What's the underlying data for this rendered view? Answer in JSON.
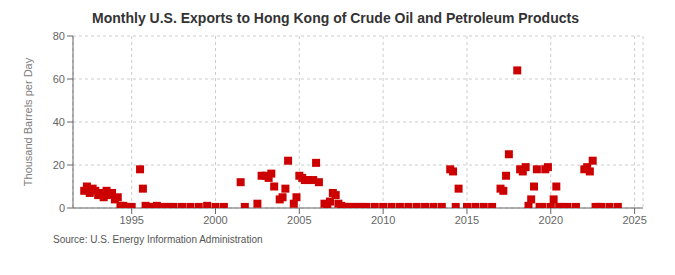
{
  "chart_data": {
    "type": "scatter",
    "title": "Monthly U.S. Exports to Hong Kong of Crude Oil and Petroleum Products",
    "y_label": "Thousand Barrels per Day",
    "annotations": [
      "Source: U.S. Energy Information Administration"
    ],
    "color": "#cc0000",
    "marker": "square",
    "grid": true,
    "xlim": [
      1991.5,
      2025.5
    ],
    "ylim": [
      0,
      80
    ],
    "xticks": [
      1995,
      2000,
      2005,
      2010,
      2015,
      2020,
      2025
    ],
    "yticks": [
      0,
      20,
      40,
      60,
      80
    ],
    "x": [
      1992.17,
      1992.33,
      1992.5,
      1992.67,
      1992.83,
      1993.0,
      1993.17,
      1993.33,
      1993.5,
      1993.67,
      1993.83,
      1994.0,
      1994.17,
      1994.33,
      1994.5,
      1994.67,
      1994.83,
      1995.0,
      1995.5,
      1995.67,
      1995.83,
      1996.0,
      1996.17,
      1996.5,
      1996.75,
      1997.0,
      1997.25,
      1997.5,
      1998.0,
      1998.5,
      1999.0,
      1999.5,
      2000.0,
      2000.5,
      2001.5,
      2001.75,
      2002.5,
      2002.75,
      2003.0,
      2003.17,
      2003.33,
      2003.5,
      2003.83,
      2004.0,
      2004.17,
      2004.33,
      2004.67,
      2004.83,
      2005.0,
      2005.17,
      2005.33,
      2005.5,
      2005.83,
      2006.0,
      2006.17,
      2006.5,
      2006.67,
      2006.83,
      2007.0,
      2007.17,
      2007.33,
      2007.5,
      2007.67,
      2007.83,
      2008.0,
      2008.25,
      2008.5,
      2008.75,
      2009.0,
      2009.5,
      2010.0,
      2010.5,
      2011.0,
      2011.5,
      2012.0,
      2012.5,
      2013.0,
      2013.5,
      2014.0,
      2014.17,
      2014.33,
      2014.5,
      2015.0,
      2015.5,
      2016.0,
      2016.5,
      2017.0,
      2017.17,
      2017.33,
      2017.5,
      2018.0,
      2018.17,
      2018.33,
      2018.5,
      2018.67,
      2018.83,
      2019.0,
      2019.17,
      2019.33,
      2019.5,
      2019.67,
      2019.83,
      2020.0,
      2020.17,
      2020.33,
      2020.5,
      2020.67,
      2021.0,
      2021.5,
      2022.0,
      2022.17,
      2022.33,
      2022.5,
      2022.67,
      2022.83,
      2023.0,
      2023.5,
      2024.0
    ],
    "values": [
      8,
      10,
      7,
      9,
      8,
      6,
      7,
      5,
      8,
      6,
      7,
      4,
      5,
      1,
      1,
      0.5,
      0.5,
      0.5,
      18,
      9,
      1,
      0.5,
      0.5,
      1,
      0.5,
      0.5,
      0.5,
      0.5,
      0.5,
      0.5,
      0.5,
      1,
      0.5,
      0.5,
      12,
      0.5,
      2,
      15,
      15,
      14,
      16,
      10,
      4,
      5,
      9,
      22,
      2,
      5,
      15,
      14,
      13,
      13,
      13,
      21,
      12,
      2,
      0.5,
      3,
      7,
      6,
      2,
      1,
      0.5,
      0.5,
      0.5,
      0.5,
      0.5,
      0.5,
      0.5,
      0.5,
      0.5,
      0.5,
      0.5,
      0.5,
      0.5,
      0.5,
      0.5,
      0.5,
      18,
      17,
      0.5,
      9,
      0.5,
      0.5,
      0.5,
      0.5,
      9,
      8,
      15,
      25,
      64,
      18,
      17,
      19,
      1,
      4,
      10,
      18,
      0.5,
      0.5,
      18,
      19,
      0.5,
      4,
      10,
      0.5,
      0.5,
      0.5,
      0.5,
      18,
      19,
      17,
      22,
      0.5,
      0.5,
      0.5,
      0.5,
      0.5
    ]
  }
}
